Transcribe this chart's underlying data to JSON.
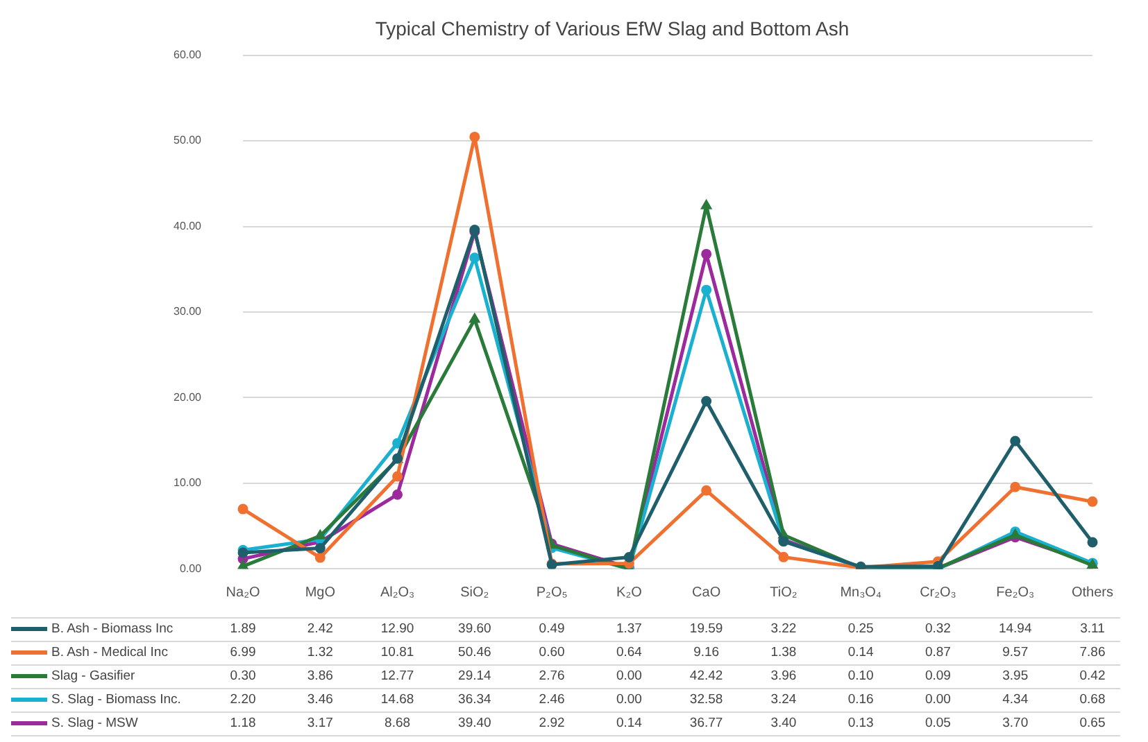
{
  "chart_data": {
    "type": "line",
    "title": "Typical Chemistry of Various EfW Slag and Bottom Ash",
    "categories": [
      "Na₂O",
      "MgO",
      "Al₂O₃",
      "SiO₂",
      "P₂O₅",
      "K₂O",
      "CaO",
      "TiO₂",
      "Mn₃O₄",
      "Cr₂O₃",
      "Fe₂O₃",
      "Others"
    ],
    "series": [
      {
        "name": "B. Ash - Biomass Inc",
        "color": "#1f5f6b",
        "marker": "circle",
        "values": [
          1.89,
          2.42,
          12.9,
          39.6,
          0.49,
          1.37,
          19.59,
          3.22,
          0.25,
          0.32,
          14.94,
          3.11
        ],
        "value_labels": [
          "1.89",
          "2.42",
          "12.90",
          "39.60",
          "0.49",
          "1.37",
          "19.59",
          "3.22",
          "0.25",
          "0.32",
          "14.94",
          "3.11"
        ]
      },
      {
        "name": "B. Ash - Medical Inc",
        "color": "#f07030",
        "marker": "circle",
        "values": [
          6.99,
          1.32,
          10.81,
          50.46,
          0.6,
          0.64,
          9.16,
          1.38,
          0.14,
          0.87,
          9.57,
          7.86
        ],
        "value_labels": [
          "6.99",
          "1.32",
          "10.81",
          "50.46",
          "0.60",
          "0.64",
          "9.16",
          "1.38",
          "0.14",
          "0.87",
          "9.57",
          "7.86"
        ]
      },
      {
        "name": "Slag - Gasifier",
        "color": "#2a7a3a",
        "marker": "triangle",
        "values": [
          0.3,
          3.86,
          12.77,
          29.14,
          2.76,
          0.0,
          42.42,
          3.96,
          0.1,
          0.09,
          3.95,
          0.42
        ],
        "value_labels": [
          "0.30",
          "3.86",
          "12.77",
          "29.14",
          "2.76",
          "0.00",
          "42.42",
          "3.96",
          "0.10",
          "0.09",
          "3.95",
          "0.42"
        ]
      },
      {
        "name": "S. Slag - Biomass Inc.",
        "color": "#1ab0d0",
        "marker": "circle",
        "values": [
          2.2,
          3.46,
          14.68,
          36.34,
          2.46,
          0.0,
          32.58,
          3.24,
          0.16,
          0.0,
          4.34,
          0.68
        ],
        "value_labels": [
          "2.20",
          "3.46",
          "14.68",
          "36.34",
          "2.46",
          "0.00",
          "32.58",
          "3.24",
          "0.16",
          "0.00",
          "4.34",
          "0.68"
        ]
      },
      {
        "name": "S. Slag - MSW",
        "color": "#9c2a9c",
        "marker": "circle",
        "values": [
          1.18,
          3.17,
          8.68,
          39.4,
          2.92,
          0.14,
          36.77,
          3.4,
          0.13,
          0.05,
          3.7,
          0.65
        ],
        "value_labels": [
          "1.18",
          "3.17",
          "8.68",
          "39.40",
          "2.92",
          "0.14",
          "36.77",
          "3.40",
          "0.13",
          "0.05",
          "3.70",
          "0.65"
        ]
      }
    ],
    "ylim": [
      0,
      60
    ],
    "yticks": [
      {
        "value": 0,
        "label": "0.00"
      },
      {
        "value": 10,
        "label": "10.00"
      },
      {
        "value": 20,
        "label": "20.00"
      },
      {
        "value": 30,
        "label": "30.00"
      },
      {
        "value": 40,
        "label": "40.00"
      },
      {
        "value": 50,
        "label": "50.00"
      },
      {
        "value": 60,
        "label": "60.00"
      }
    ],
    "grid": "y",
    "legend": "bottom",
    "line_style": "solid"
  }
}
